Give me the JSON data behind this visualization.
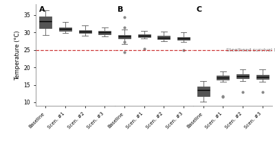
{
  "panels": [
    "A",
    "B",
    "C"
  ],
  "categories": [
    "Baseline",
    "Scen. #1",
    "Scen. #2",
    "Scen. #3"
  ],
  "colors": [
    "#4a6274",
    "#b0b8b0",
    "#5cb88a",
    "#2e7d5a"
  ],
  "steelhead_line": 25,
  "steelhead_label": "Steelhead survival line",
  "ylabel": "Temperature (°C)",
  "ylim": [
    9,
    38
  ],
  "yticks": [
    10,
    15,
    20,
    25,
    30,
    35
  ],
  "panel_A": {
    "boxes": [
      {
        "med": 33.2,
        "q1": 31.2,
        "q3": 34.5,
        "whislo": 29.3,
        "whishi": 36.3,
        "fliers": []
      },
      {
        "med": 31.0,
        "q1": 30.5,
        "q3": 31.5,
        "whislo": 29.8,
        "whishi": 33.0,
        "fliers": []
      },
      {
        "med": 30.2,
        "q1": 29.8,
        "q3": 30.7,
        "whislo": 29.0,
        "whishi": 32.0,
        "fliers": []
      },
      {
        "med": 30.0,
        "q1": 29.5,
        "q3": 30.5,
        "whislo": 28.8,
        "whishi": 31.5,
        "fliers": []
      }
    ]
  },
  "panel_B": {
    "boxes": [
      {
        "med": 28.8,
        "q1": 28.3,
        "q3": 29.3,
        "whislo": 26.7,
        "whishi": 30.8,
        "fliers": [
          34.3,
          31.5,
          27.3,
          24.3
        ]
      },
      {
        "med": 29.1,
        "q1": 28.6,
        "q3": 29.5,
        "whislo": 28.2,
        "whishi": 30.5,
        "fliers": [
          25.3
        ]
      },
      {
        "med": 28.5,
        "q1": 28.0,
        "q3": 29.0,
        "whislo": 27.5,
        "whishi": 30.2,
        "fliers": []
      },
      {
        "med": 28.2,
        "q1": 27.8,
        "q3": 28.7,
        "whislo": 27.3,
        "whishi": 30.0,
        "fliers": [
          25.0
        ]
      }
    ]
  },
  "panel_C": {
    "boxes": [
      {
        "med": 13.5,
        "q1": 11.8,
        "q3": 14.5,
        "whislo": 10.2,
        "whishi": 16.0,
        "fliers": []
      },
      {
        "med": 17.0,
        "q1": 16.4,
        "q3": 17.7,
        "whislo": 15.8,
        "whishi": 18.8,
        "fliers": [
          11.8,
          11.5
        ]
      },
      {
        "med": 17.4,
        "q1": 16.8,
        "q3": 18.0,
        "whislo": 16.0,
        "whishi": 19.5,
        "fliers": [
          13.0
        ]
      },
      {
        "med": 17.3,
        "q1": 16.7,
        "q3": 17.9,
        "whislo": 15.8,
        "whishi": 19.5,
        "fliers": [
          13.0
        ]
      }
    ]
  }
}
